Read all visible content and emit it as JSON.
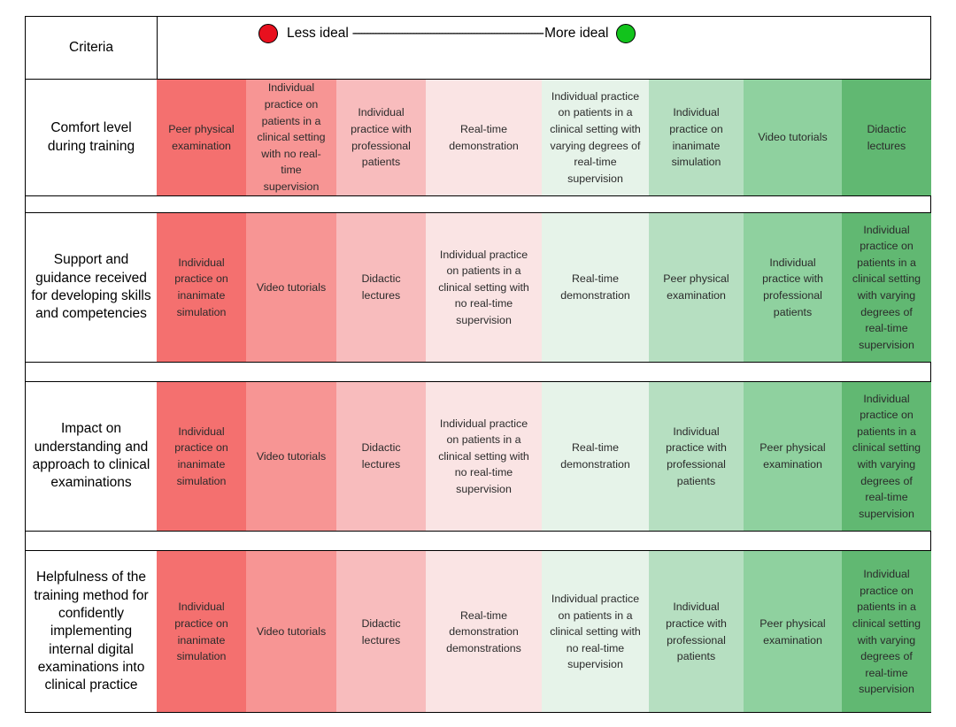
{
  "header": {
    "criteria_label": "Criteria",
    "less_label": "Less ideal",
    "dashes": "------------------------------------------------------------------",
    "more_label": "More ideal",
    "less_color": "#e8101e",
    "more_color": "#12c31c"
  },
  "colors": [
    "#f4706f",
    "#f79594",
    "#f8bcbd",
    "#fae4e4",
    "#e6f3e9",
    "#b6dfc1",
    "#8fd19f",
    "#61b872"
  ],
  "rows": [
    {
      "criterion": "Comfort level during training",
      "cells": [
        "Peer physical examination",
        "Individual practice on patients in a clinical setting with no real-time supervision",
        "Individual practice with professional patients",
        "Real-time demonstration",
        "Individual practice on patients in a clinical setting with varying degrees of real-time supervision",
        "Individual practice on inanimate simulation",
        "Video tutorials",
        "Didactic lectures"
      ]
    },
    {
      "criterion": "Support and guidance received for developing skills and competencies",
      "cells": [
        "Individual practice on inanimate simulation",
        "Video tutorials",
        "Didactic lectures",
        "Individual practice on patients in a clinical setting with no real-time supervision",
        "Real-time demonstration",
        "Peer physical examination",
        "Individual practice with professional patients",
        "Individual practice on patients in a clinical setting with varying degrees of real-time supervision"
      ]
    },
    {
      "criterion": "Impact on understanding and approach to clinical examinations",
      "cells": [
        "Individual practice on inanimate simulation",
        "Video tutorials",
        "Didactic lectures",
        "Individual practice on patients in a clinical setting with no real-time supervision",
        "Real-time demonstration",
        "Individual practice with professional patients",
        "Peer physical examination",
        "Individual practice on patients in a clinical setting with varying degrees of real-time supervision"
      ]
    },
    {
      "criterion": "Helpfulness of the training method for confidently implementing internal digital examinations into clinical practice",
      "cells": [
        "Individual practice on inanimate simulation",
        "Video tutorials",
        "Didactic lectures",
        "Real-time demonstration demonstrations",
        "Individual practice on patients in a clinical setting with no real-time supervision",
        "Individual practice with professional patients",
        "Peer physical examination",
        "Individual practice on patients in a clinical setting with varying degrees of real-time supervision"
      ]
    }
  ]
}
